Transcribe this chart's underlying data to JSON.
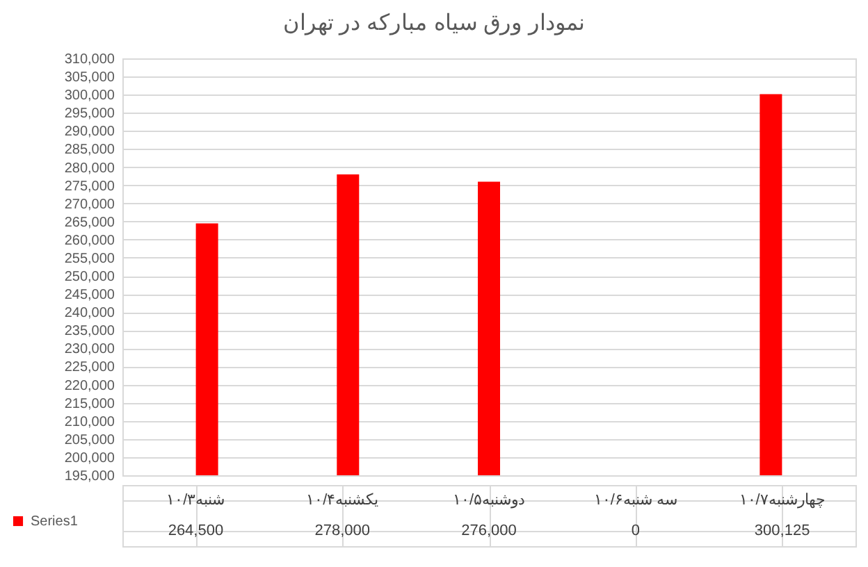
{
  "chart_data": {
    "type": "bar",
    "title": "نمودار ورق سیاه مبارکه در تهران",
    "categories": [
      "شنبه۱۰/۳",
      "یکشنبه۱۰/۴",
      "دوشنبه۱۰/۵",
      "سه شنبه۱۰/۶",
      "چهارشنبه۱۰/۷"
    ],
    "series": [
      {
        "name": "Series1",
        "color": "#ff0000",
        "values": [
          264500,
          278000,
          276000,
          null,
          300125
        ],
        "value_labels": [
          "264,500",
          "278,000",
          "276,000",
          "0",
          "300,125"
        ]
      }
    ],
    "ylim": [
      195000,
      310000
    ],
    "yticks": [
      {
        "value": 195000,
        "label": "195,000"
      },
      {
        "value": 200000,
        "label": "200,000"
      },
      {
        "value": 205000,
        "label": "205,000"
      },
      {
        "value": 210000,
        "label": "210,000"
      },
      {
        "value": 215000,
        "label": "215,000"
      },
      {
        "value": 220000,
        "label": "220,000"
      },
      {
        "value": 225000,
        "label": "225,000"
      },
      {
        "value": 230000,
        "label": "230,000"
      },
      {
        "value": 235000,
        "label": "235,000"
      },
      {
        "value": 240000,
        "label": "240,000"
      },
      {
        "value": 245000,
        "label": "245,000"
      },
      {
        "value": 250000,
        "label": "250,000"
      },
      {
        "value": 255000,
        "label": "255,000"
      },
      {
        "value": 260000,
        "label": "260,000"
      },
      {
        "value": 265000,
        "label": "265,000"
      },
      {
        "value": 270000,
        "label": "270,000"
      },
      {
        "value": 275000,
        "label": "275,000"
      },
      {
        "value": 280000,
        "label": "280,000"
      },
      {
        "value": 285000,
        "label": "285,000"
      },
      {
        "value": 290000,
        "label": "290,000"
      },
      {
        "value": 295000,
        "label": "295,000"
      },
      {
        "value": 300000,
        "label": "300,000"
      },
      {
        "value": 305000,
        "label": "305,000"
      },
      {
        "value": 310000,
        "label": "310,000"
      }
    ],
    "grid": "y",
    "legend": "bottom"
  }
}
